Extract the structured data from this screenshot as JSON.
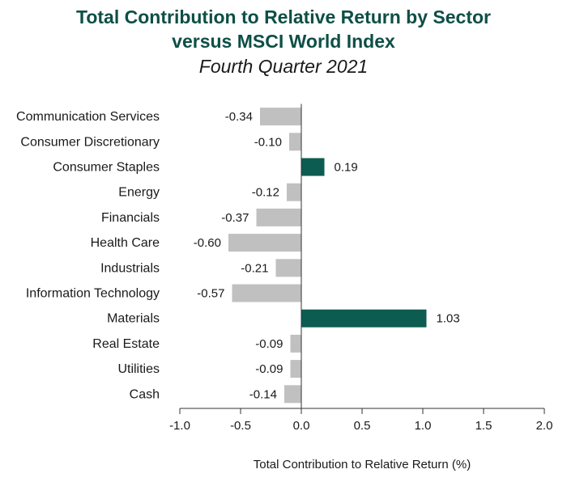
{
  "chart_data": {
    "type": "bar",
    "orientation": "horizontal",
    "title": "Total Contribution to Relative Return by Sector",
    "title_line2": "versus MSCI World Index",
    "subtitle": "Fourth Quarter 2021",
    "xlabel": "Total Contribution to Relative Return (%)",
    "categories": [
      "Communication Services",
      "Consumer Discretionary",
      "Consumer Staples",
      "Energy",
      "Financials",
      "Health Care",
      "Industrials",
      "Information Technology",
      "Materials",
      "Real Estate",
      "Utilities",
      "Cash"
    ],
    "values": [
      -0.34,
      -0.1,
      0.19,
      -0.12,
      -0.37,
      -0.6,
      -0.21,
      -0.57,
      1.03,
      -0.09,
      -0.09,
      -0.14
    ],
    "value_labels": [
      "-0.34",
      "-0.10",
      "0.19",
      "-0.12",
      "-0.37",
      "-0.60",
      "-0.21",
      "-0.57",
      "1.03",
      "-0.09",
      "-0.09",
      "-0.14"
    ],
    "xlim": [
      -1.0,
      2.0
    ],
    "xticks": [
      -1.0,
      -0.5,
      0.0,
      0.5,
      1.0,
      1.5,
      2.0
    ],
    "xtick_labels": [
      "-1.0",
      "-0.5",
      "0.0",
      "0.5",
      "1.0",
      "1.5",
      "2.0"
    ],
    "grid": false,
    "colors": {
      "positive": "#0d5c52",
      "negative": "#c0c0c0",
      "title": "#0d4f47"
    }
  }
}
